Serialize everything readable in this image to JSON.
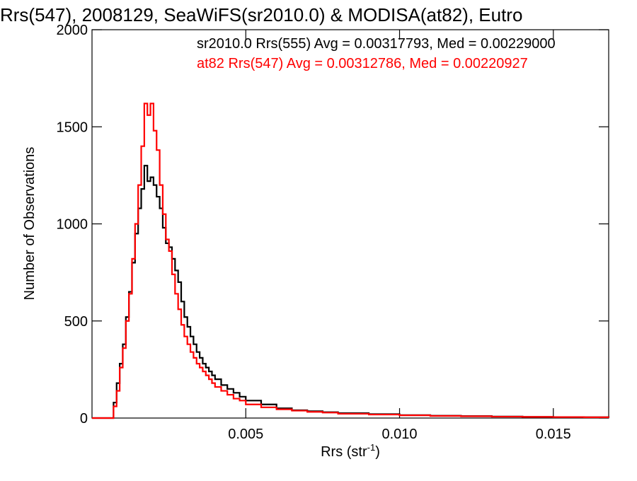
{
  "chart_data": {
    "type": "line",
    "step": true,
    "title": "Rrs(547), 2008129, SeaWiFS(sr2010.0) & MODISA(at82), Eutro",
    "xlabel": "Rrs (str",
    "xlabel_sup": "-1",
    "xlabel_end": ")",
    "ylabel": "Number of Observations",
    "xlim": [
      0.0,
      0.0168
    ],
    "ylim": [
      0,
      2000
    ],
    "xticks": [
      0.005,
      0.01,
      0.015
    ],
    "xtick_labels": [
      "0.005",
      "0.010",
      "0.015"
    ],
    "yticks": [
      0,
      500,
      1000,
      1500,
      2000
    ],
    "ytick_labels": [
      "0",
      "500",
      "1000",
      "1500",
      "2000"
    ],
    "grid": false,
    "legend_position": "top-right",
    "series": [
      {
        "name": "sr2010.0 Rrs(555) Avg = 0.00317793, Med = 0.00229000",
        "color": "#000000",
        "x": [
          0.0,
          0.0005,
          0.0007,
          0.0008,
          0.0009,
          0.001,
          0.0011,
          0.0012,
          0.0013,
          0.0014,
          0.0015,
          0.0016,
          0.0017,
          0.0018,
          0.0019,
          0.002,
          0.0021,
          0.0022,
          0.0023,
          0.0024,
          0.0025,
          0.0026,
          0.0027,
          0.0028,
          0.0029,
          0.003,
          0.0031,
          0.0032,
          0.0033,
          0.0034,
          0.0035,
          0.0036,
          0.0037,
          0.0038,
          0.0039,
          0.004,
          0.0042,
          0.0044,
          0.0046,
          0.0048,
          0.005,
          0.0055,
          0.006,
          0.0065,
          0.007,
          0.0075,
          0.008,
          0.009,
          0.01,
          0.011,
          0.012,
          0.013,
          0.014,
          0.015,
          0.016,
          0.0168
        ],
        "values": [
          0,
          0,
          80,
          180,
          280,
          380,
          520,
          650,
          800,
          950,
          1080,
          1180,
          1300,
          1220,
          1240,
          1200,
          1140,
          1080,
          980,
          900,
          880,
          820,
          760,
          700,
          600,
          520,
          470,
          420,
          380,
          340,
          310,
          280,
          260,
          240,
          220,
          200,
          170,
          150,
          130,
          110,
          90,
          70,
          50,
          40,
          35,
          30,
          25,
          20,
          15,
          12,
          10,
          8,
          6,
          5,
          4,
          3
        ]
      },
      {
        "name": "at82 Rrs(547) Avg = 0.00312786, Med = 0.00220927",
        "color": "#ff0000",
        "x": [
          0.0,
          0.0005,
          0.0007,
          0.0008,
          0.0009,
          0.001,
          0.0011,
          0.0012,
          0.0013,
          0.0014,
          0.0015,
          0.0016,
          0.0017,
          0.0018,
          0.0019,
          0.002,
          0.0021,
          0.0022,
          0.0023,
          0.0024,
          0.0025,
          0.0026,
          0.0027,
          0.0028,
          0.0029,
          0.003,
          0.0031,
          0.0032,
          0.0033,
          0.0034,
          0.0035,
          0.0036,
          0.0037,
          0.0038,
          0.0039,
          0.004,
          0.0042,
          0.0044,
          0.0046,
          0.0048,
          0.005,
          0.0055,
          0.006,
          0.0065,
          0.007,
          0.0075,
          0.008,
          0.009,
          0.01,
          0.011,
          0.012,
          0.013,
          0.014,
          0.015,
          0.016,
          0.0168
        ],
        "values": [
          0,
          0,
          60,
          140,
          260,
          360,
          500,
          640,
          820,
          1000,
          1200,
          1400,
          1620,
          1560,
          1620,
          1480,
          1380,
          1200,
          1050,
          920,
          860,
          740,
          640,
          560,
          480,
          420,
          380,
          340,
          310,
          280,
          260,
          240,
          220,
          200,
          180,
          160,
          140,
          120,
          100,
          90,
          70,
          55,
          45,
          38,
          32,
          28,
          22,
          18,
          14,
          11,
          9,
          7,
          6,
          5,
          4,
          3
        ]
      }
    ]
  }
}
